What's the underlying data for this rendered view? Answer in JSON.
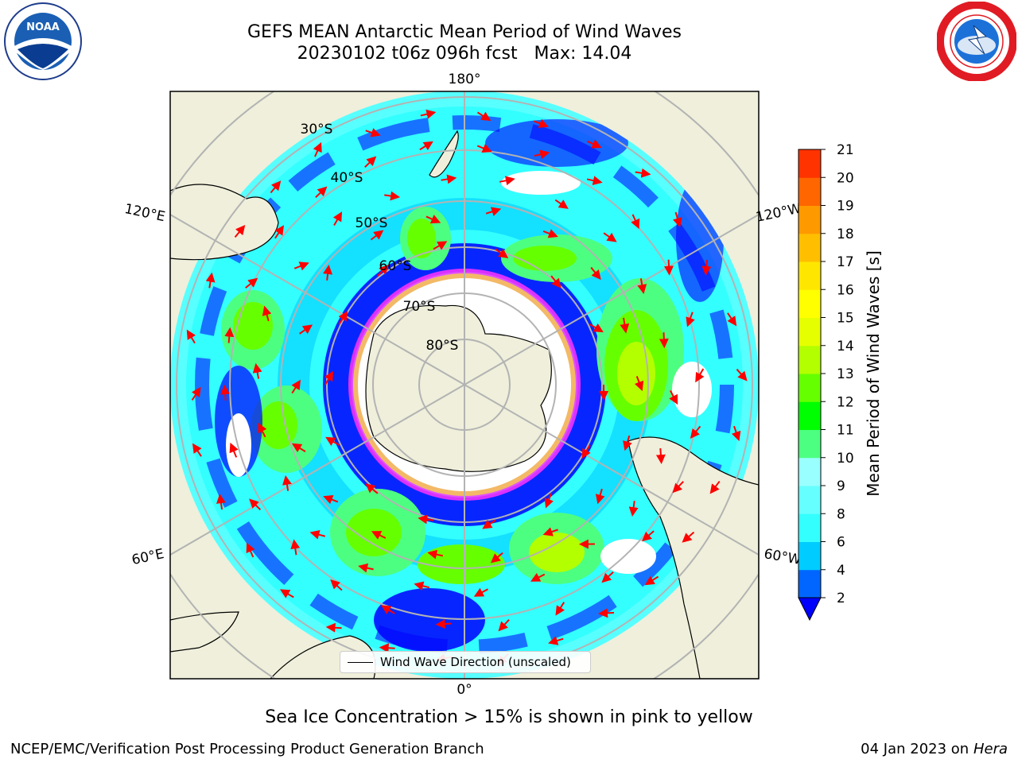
{
  "header": {
    "title": "GEFS MEAN Antarctic Mean Period of Wind Waves",
    "subtitle_line": "20230102 t06z 096h fcst   Max: 14.04"
  },
  "logos": {
    "left": {
      "icon": "noaa-logo",
      "text": "NOAA"
    },
    "right": {
      "icon": "nws-logo"
    }
  },
  "map": {
    "projection": "south-polar-stereographic",
    "longitude_labels": [
      "180°",
      "120°E",
      "120°W",
      "60°E",
      "60°W",
      "0°"
    ],
    "latitude_labels": [
      "30°S",
      "40°S",
      "50°S",
      "60°S",
      "70°S",
      "80°S"
    ],
    "legend": {
      "label": "Wind Wave Direction (unscaled)"
    },
    "colors": {
      "land": "#efefdb",
      "coast": "#000000",
      "grid": "#b3b3b3",
      "arrow": "#ff0000",
      "sea_ice": "#ff33ff"
    }
  },
  "colorbar": {
    "label": "Mean Period of Wind Waves [s]",
    "ticks": [
      "2",
      "4",
      "6",
      "8",
      "9",
      "10",
      "11",
      "12",
      "13",
      "14",
      "15",
      "16",
      "17",
      "18",
      "19",
      "20",
      "21"
    ],
    "colors": [
      "#0066ff",
      "#00ccff",
      "#33ffff",
      "#66ffff",
      "#99ffff",
      "#4dff80",
      "#00ff00",
      "#66ff00",
      "#b3ff00",
      "#e6ff00",
      "#ffff00",
      "#ffe600",
      "#ffbf00",
      "#ff9900",
      "#ff6600",
      "#ff3300",
      "#ff0000"
    ],
    "under_color": "#0000ff"
  },
  "footer": {
    "note": "Sea Ice Concentration > 15% is shown in pink to yellow",
    "credit": "NCEP/EMC/Verification Post Processing Product Generation Branch",
    "date": "04 Jan 2023 on",
    "machine": "Hera"
  }
}
